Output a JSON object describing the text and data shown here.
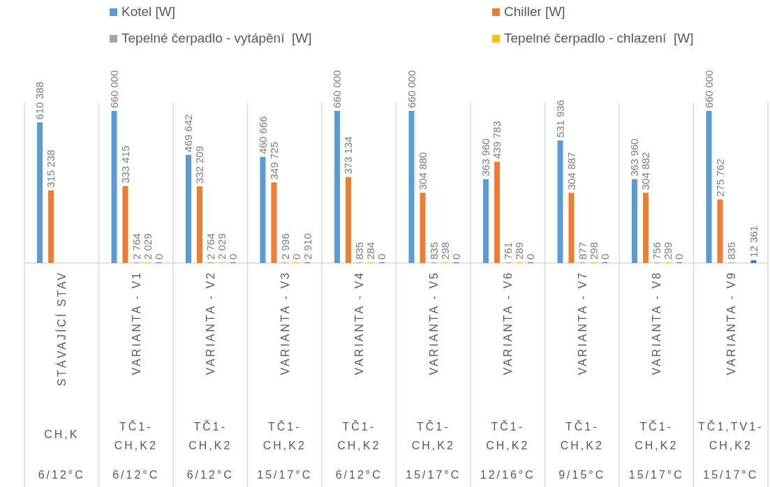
{
  "chart_data": {
    "type": "bar",
    "categories": [
      "STÁVAJÍCÍ STAV",
      "VARIANTA - V1",
      "VARIANTA - V2",
      "VARIANTA - V3",
      "VARIANTA - V4",
      "VARIANTA - V5",
      "VARIANTA - V6",
      "VARIANTA - V7",
      "VARIANTA - V8",
      "VARIANTA - V9"
    ],
    "series": [
      {
        "name": "Kotel [W]",
        "color": "#5b9bd5",
        "values": [
          610388,
          660000,
          469642,
          460666,
          660000,
          660000,
          363960,
          531936,
          363960,
          660000
        ],
        "value_labels": [
          "610 388",
          "660 000",
          "469 642",
          "460 666",
          "660 000",
          "660 000",
          "363 960",
          "531 936",
          "363 960",
          "660 000"
        ]
      },
      {
        "name": "Chiller [W]",
        "color": "#ed7d31",
        "values": [
          315238,
          333415,
          332209,
          349725,
          373134,
          304880,
          439783,
          304887,
          304882,
          275762
        ],
        "value_labels": [
          "315 238",
          "333 415",
          "332 209",
          "349 725",
          "373 134",
          "304 880",
          "439 783",
          "304 887",
          "304 882",
          "275 762"
        ]
      },
      {
        "name": "Tepelné čerpadlo - vytápění  [W]",
        "color": "#a5a5a5",
        "values": [
          null,
          2764,
          2764,
          2996,
          835,
          835,
          761,
          877,
          756,
          835
        ],
        "value_labels": [
          null,
          "2 764",
          "2 764",
          "2 996",
          "835",
          "835",
          "761",
          "877",
          "756",
          "835"
        ]
      },
      {
        "name": "Tepelné čerpadlo - chlazení  [W]",
        "color": "#ffc000",
        "values": [
          null,
          2029,
          2029,
          0,
          284,
          298,
          289,
          298,
          299,
          null
        ],
        "value_labels": [
          null,
          "2 029",
          "2 029",
          "0",
          "284",
          "298",
          "289",
          "298",
          "299",
          null
        ]
      },
      {
        "color": "#4472c4",
        "values": [
          null,
          0,
          0,
          2910,
          0,
          0,
          0,
          0,
          0,
          12361
        ],
        "value_labels": [
          null,
          "0",
          "0",
          "2 910",
          "0",
          "0",
          "0",
          "0",
          "0",
          "12 361"
        ]
      }
    ],
    "annotations": [
      "CH,K",
      "6/12°C",
      "TČ1-CH,K2",
      "6/12°C",
      "TČ1-CH,K2",
      "6/12°C",
      "TČ1-CH,K2",
      "15/17°C",
      "TČ1-CH,K2",
      "6/12°C",
      "TČ1-CH,K2",
      "15/17°C",
      "TČ1-CH,K2",
      "12/16°C",
      "TČ1-CH,K2",
      "9/15°C",
      "TČ1-CH,K2",
      "15/17°C",
      "TČ1,TV1-CH,K2",
      "15/17°C"
    ],
    "legend": "top"
  }
}
